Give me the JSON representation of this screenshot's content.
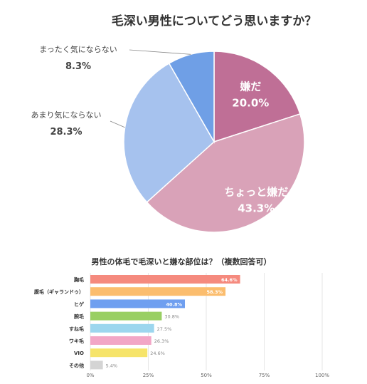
{
  "chart_data": [
    {
      "type": "pie",
      "title": "毛深い男性についてどう思いますか？",
      "slices": [
        {
          "label": "嫌だ",
          "value": 20.0,
          "display": "20.0%",
          "color": "#bf6f96",
          "text_color": "#ffffff"
        },
        {
          "label": "ちょっと嫌だ",
          "value": 43.3,
          "display": "43.3%",
          "color": "#d9a2b8",
          "text_color": "#ffffff"
        },
        {
          "label": "あまり気にならない",
          "value": 28.3,
          "display": "28.3%",
          "color": "#a6c2ee",
          "text_color": "#444444"
        },
        {
          "label": "まったく気にならない",
          "value": 8.3,
          "display": "8.3%",
          "color": "#6f9fe6",
          "text_color": "#444444"
        }
      ]
    },
    {
      "type": "bar",
      "orientation": "horizontal",
      "title": "男性の体毛で毛深いと嫌な部位は？（複数回答可）",
      "categories": [
        "胸毛",
        "腹毛（ギャランドゥ）",
        "ヒゲ",
        "腕毛",
        "すね毛",
        "ワキ毛",
        "VIO",
        "その他"
      ],
      "values": [
        64.6,
        58.3,
        40.8,
        30.8,
        27.5,
        26.3,
        24.6,
        5.4
      ],
      "labels": [
        "64.6%",
        "58.3%",
        "40.8%",
        "30.8%",
        "27.5%",
        "26.3%",
        "24.6%",
        "5.4%"
      ],
      "colors": [
        "#f58a7e",
        "#fbbd6e",
        "#6f9ff0",
        "#99cf63",
        "#9cd6ee",
        "#f2a6c6",
        "#f6e46a",
        "#d4d4d4"
      ],
      "xticks": [
        "0%",
        "25%",
        "50%",
        "75%",
        "100%"
      ],
      "xlim": [
        0,
        100
      ],
      "grid": true
    }
  ]
}
